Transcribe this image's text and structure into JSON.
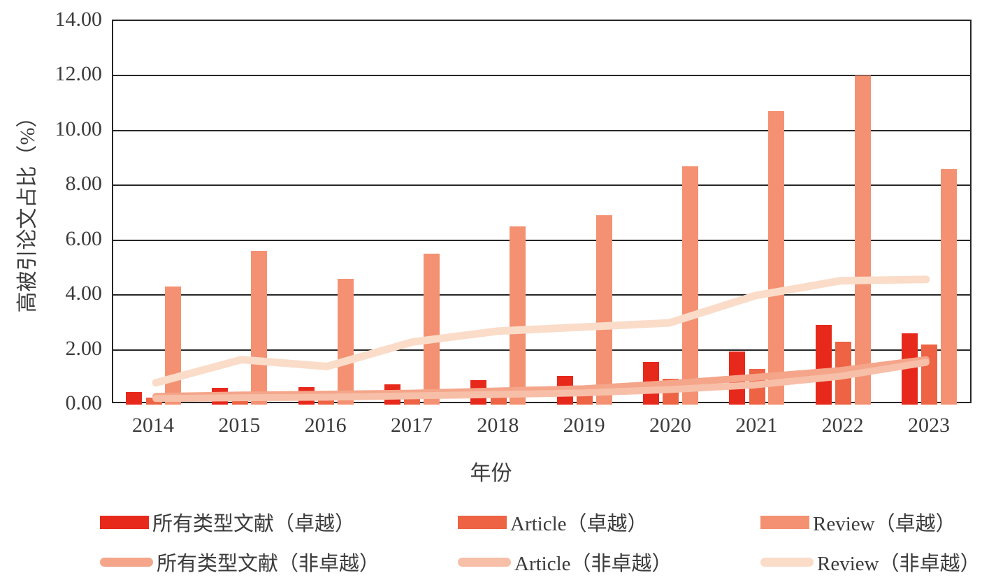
{
  "chart_data": {
    "type": "composite-bar-line",
    "title": "",
    "xlabel": "年份",
    "ylabel": "高被引论文占比（%）",
    "ylim": [
      0,
      14
    ],
    "y_ticks": [
      "0.00",
      "2.00",
      "4.00",
      "6.00",
      "8.00",
      "10.00",
      "12.00",
      "14.00"
    ],
    "grid": true,
    "legend_position": "bottom",
    "categories": [
      "2014",
      "2015",
      "2016",
      "2017",
      "2018",
      "2019",
      "2020",
      "2021",
      "2022",
      "2023"
    ],
    "bar_series": [
      {
        "name": "所有类型文献（卓越）",
        "color": "#e7291c",
        "values": [
          0.45,
          0.6,
          0.65,
          0.75,
          0.9,
          1.05,
          1.55,
          1.95,
          2.9,
          2.6
        ]
      },
      {
        "name": "Article（卓越）",
        "color": "#ed6344",
        "values": [
          0.25,
          0.25,
          0.3,
          0.45,
          0.5,
          0.7,
          0.95,
          1.3,
          2.3,
          2.2
        ]
      },
      {
        "name": "Review（卓越）",
        "color": "#f49172",
        "values": [
          4.3,
          5.6,
          4.6,
          5.5,
          6.5,
          6.9,
          8.7,
          10.7,
          12.0,
          8.6
        ]
      }
    ],
    "line_series": [
      {
        "name": "所有类型文献（非卓越）",
        "color": "#f4a58a",
        "stroke_width": 10,
        "values": [
          0.2,
          0.25,
          0.28,
          0.32,
          0.4,
          0.48,
          0.67,
          0.9,
          1.15,
          1.55
        ]
      },
      {
        "name": "Article（非卓越）",
        "color": "#f7bfa8",
        "stroke_width": 10,
        "values": [
          0.12,
          0.15,
          0.17,
          0.22,
          0.27,
          0.33,
          0.45,
          0.62,
          0.94,
          1.45
        ]
      },
      {
        "name": "Review（非卓越）",
        "color": "#fadcc9",
        "stroke_width": 11,
        "values": [
          0.7,
          1.55,
          1.3,
          2.2,
          2.6,
          2.75,
          2.9,
          3.9,
          4.45,
          4.5
        ]
      }
    ]
  },
  "legend": {
    "items": [
      {
        "label": "所有类型文献（卓越）",
        "type": "bar",
        "color": "#e7291c"
      },
      {
        "label": "Article（卓越）",
        "type": "bar",
        "color": "#ed6344"
      },
      {
        "label": "Review（卓越）",
        "type": "bar",
        "color": "#f49172"
      },
      {
        "label": "所有类型文献（非卓越）",
        "type": "line",
        "color": "#f4a58a"
      },
      {
        "label": "Article（非卓越）",
        "type": "line",
        "color": "#f7bfa8"
      },
      {
        "label": "Review（非卓越）",
        "type": "line",
        "color": "#fadcc9"
      }
    ]
  }
}
